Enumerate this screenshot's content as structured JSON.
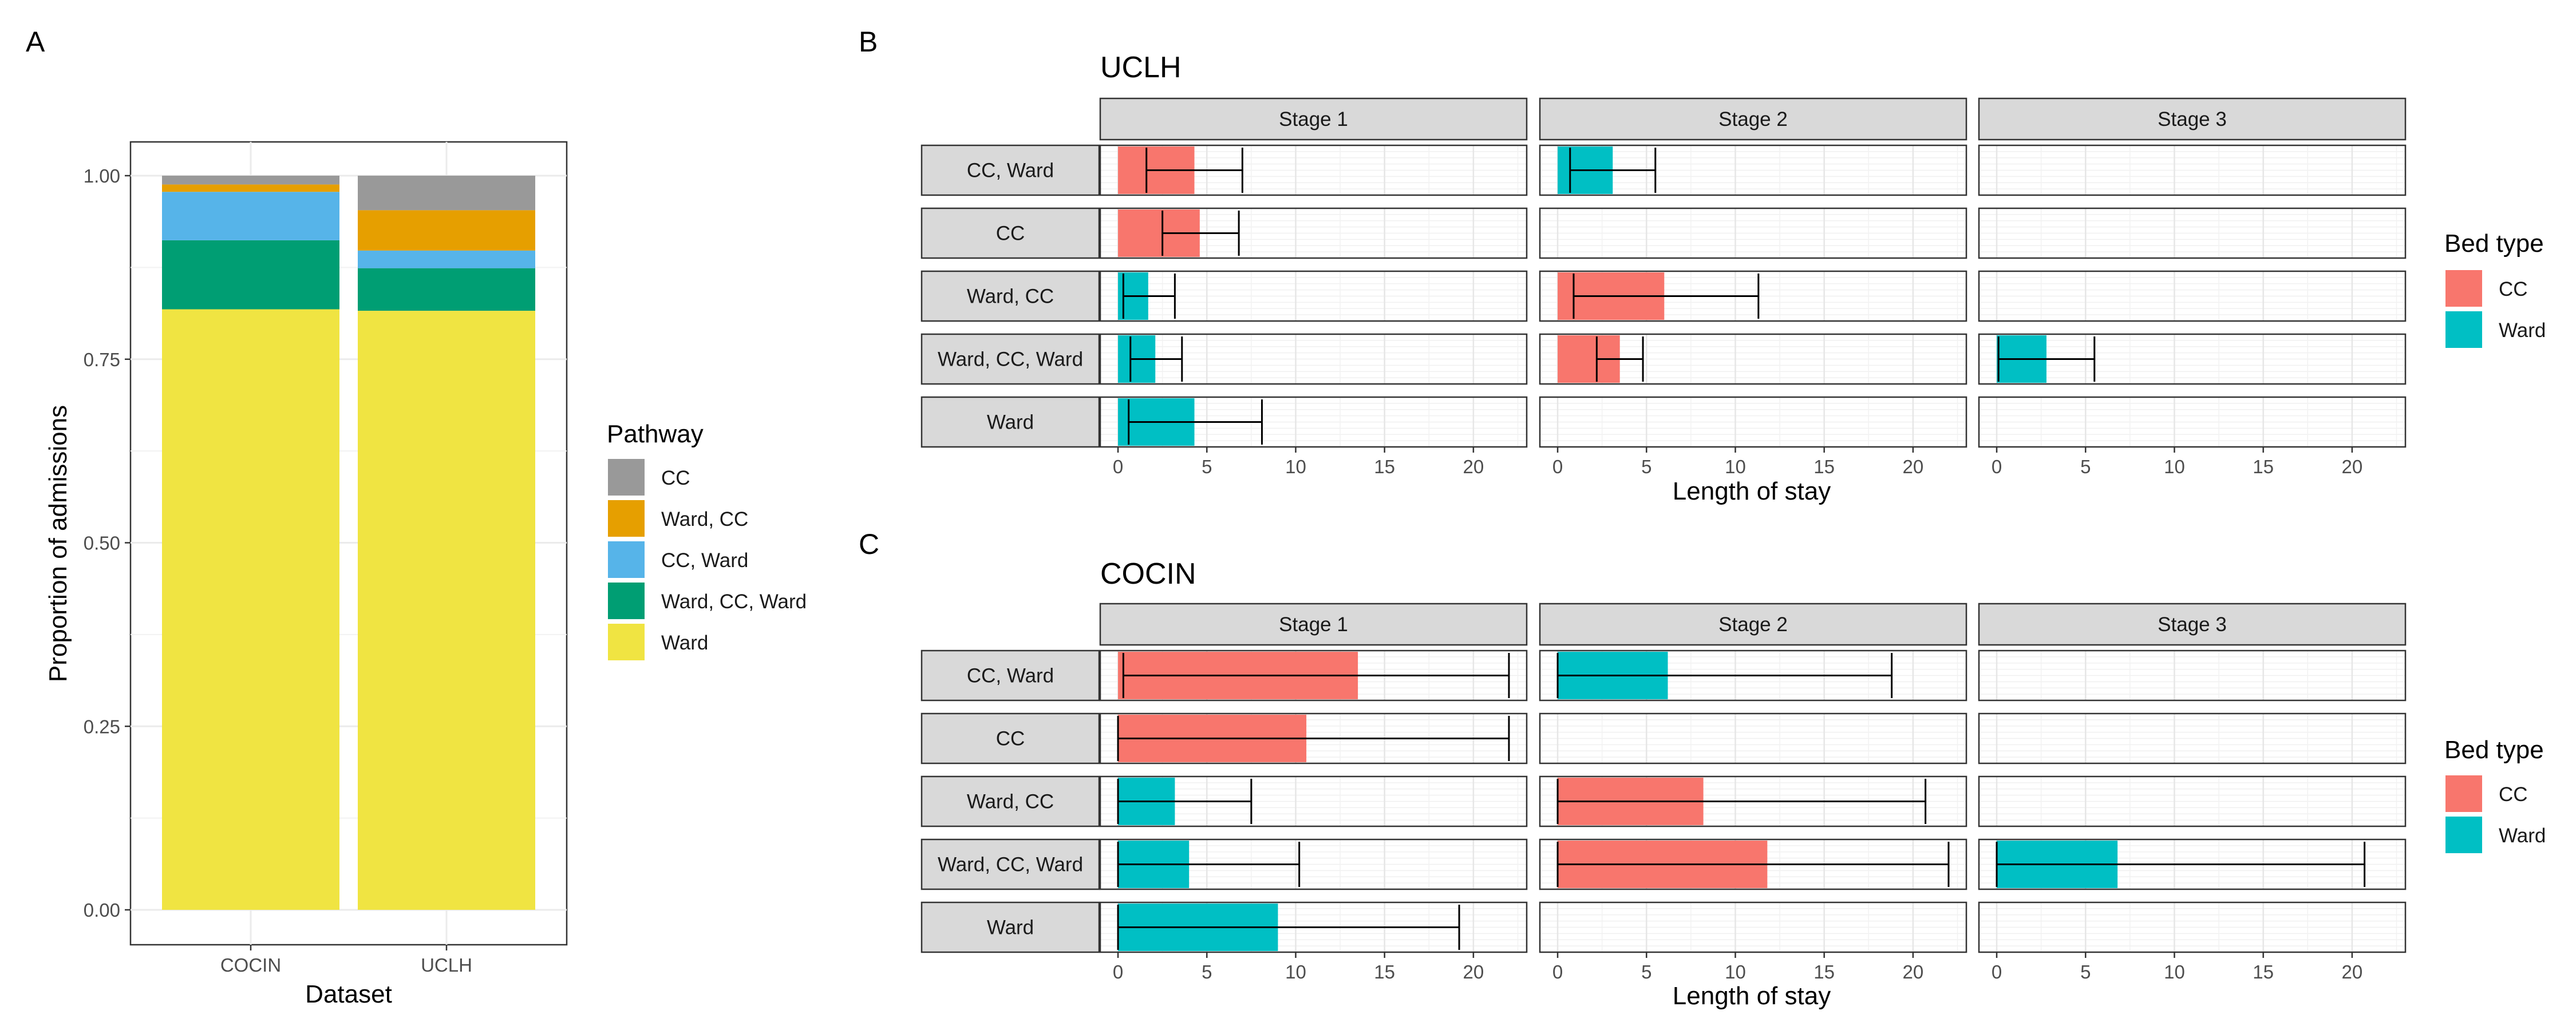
{
  "panel_labels": {
    "a": "A",
    "b": "B",
    "c": "C"
  },
  "colors": {
    "CC": "#999999",
    "Ward, CC": "#E69F00",
    "CC, Ward": "#56B4E9",
    "Ward, CC, Ward": "#009E73",
    "Ward": "#F0E442",
    "bed_CC": "#F8766D",
    "bed_Ward": "#00BFC4"
  },
  "chart_data": [
    {
      "type": "bar",
      "stacked": true,
      "panel": "A",
      "xlabel": "Dataset",
      "ylabel": "Proportion of admissions",
      "categories": [
        "COCIN",
        "UCLH"
      ],
      "ylim": [
        0,
        1
      ],
      "yticks": [
        "0.00",
        "0.25",
        "0.50",
        "0.75",
        "1.00"
      ],
      "legend": {
        "title": "Pathway",
        "position": "right",
        "entries": [
          "CC",
          "Ward, CC",
          "CC, Ward",
          "Ward, CC, Ward",
          "Ward"
        ]
      },
      "series": [
        {
          "name": "Ward",
          "values": [
            0.818,
            0.816
          ]
        },
        {
          "name": "Ward, CC, Ward",
          "values": [
            0.094,
            0.058
          ]
        },
        {
          "name": "CC, Ward",
          "values": [
            0.066,
            0.024
          ]
        },
        {
          "name": "Ward, CC",
          "values": [
            0.01,
            0.055
          ]
        },
        {
          "name": "CC",
          "values": [
            0.012,
            0.047
          ]
        }
      ]
    },
    {
      "type": "bar",
      "orientation": "horizontal",
      "panel": "B",
      "title": "UCLH",
      "xlabel": "Length of stay",
      "xlim": [
        -1,
        23
      ],
      "xticks": [
        0,
        5,
        10,
        15,
        20
      ],
      "stages": [
        "Stage 1",
        "Stage 2",
        "Stage 3"
      ],
      "pathways": [
        "CC, Ward",
        "CC",
        "Ward, CC",
        "Ward, CC, Ward",
        "Ward"
      ],
      "legend": {
        "title": "Bed type",
        "position": "right",
        "entries": [
          "CC",
          "Ward"
        ]
      },
      "bars": [
        {
          "pathway": "CC, Ward",
          "stage": "Stage 1",
          "bed": "CC",
          "value": 4.3,
          "lo": 1.6,
          "hi": 7.0
        },
        {
          "pathway": "CC, Ward",
          "stage": "Stage 2",
          "bed": "Ward",
          "value": 3.1,
          "lo": 0.7,
          "hi": 5.5
        },
        {
          "pathway": "CC",
          "stage": "Stage 1",
          "bed": "CC",
          "value": 4.6,
          "lo": 2.5,
          "hi": 6.8
        },
        {
          "pathway": "Ward, CC",
          "stage": "Stage 1",
          "bed": "Ward",
          "value": 1.7,
          "lo": 0.3,
          "hi": 3.2
        },
        {
          "pathway": "Ward, CC",
          "stage": "Stage 2",
          "bed": "CC",
          "value": 6.0,
          "lo": 0.9,
          "hi": 11.3
        },
        {
          "pathway": "Ward, CC, Ward",
          "stage": "Stage 1",
          "bed": "Ward",
          "value": 2.1,
          "lo": 0.7,
          "hi": 3.6
        },
        {
          "pathway": "Ward, CC, Ward",
          "stage": "Stage 2",
          "bed": "CC",
          "value": 3.5,
          "lo": 2.2,
          "hi": 4.8
        },
        {
          "pathway": "Ward, CC, Ward",
          "stage": "Stage 3",
          "bed": "Ward",
          "value": 2.8,
          "lo": 0.1,
          "hi": 5.5
        },
        {
          "pathway": "Ward",
          "stage": "Stage 1",
          "bed": "Ward",
          "value": 4.3,
          "lo": 0.6,
          "hi": 8.1
        }
      ]
    },
    {
      "type": "bar",
      "orientation": "horizontal",
      "panel": "C",
      "title": "COCIN",
      "xlabel": "Length of stay",
      "xlim": [
        -1,
        23
      ],
      "xticks": [
        0,
        5,
        10,
        15,
        20
      ],
      "stages": [
        "Stage 1",
        "Stage 2",
        "Stage 3"
      ],
      "pathways": [
        "CC, Ward",
        "CC",
        "Ward, CC",
        "Ward, CC, Ward",
        "Ward"
      ],
      "legend": {
        "title": "Bed type",
        "position": "right",
        "entries": [
          "CC",
          "Ward"
        ]
      },
      "bars": [
        {
          "pathway": "CC, Ward",
          "stage": "Stage 1",
          "bed": "CC",
          "value": 13.5,
          "lo": 0.3,
          "hi": 22.0
        },
        {
          "pathway": "CC, Ward",
          "stage": "Stage 2",
          "bed": "Ward",
          "value": 6.2,
          "lo": 0.0,
          "hi": 18.8
        },
        {
          "pathway": "CC",
          "stage": "Stage 1",
          "bed": "CC",
          "value": 10.6,
          "lo": 0.0,
          "hi": 22.0
        },
        {
          "pathway": "Ward, CC",
          "stage": "Stage 1",
          "bed": "Ward",
          "value": 3.2,
          "lo": 0.0,
          "hi": 7.5
        },
        {
          "pathway": "Ward, CC",
          "stage": "Stage 2",
          "bed": "CC",
          "value": 8.2,
          "lo": 0.0,
          "hi": 20.7
        },
        {
          "pathway": "Ward, CC, Ward",
          "stage": "Stage 1",
          "bed": "Ward",
          "value": 4.0,
          "lo": 0.0,
          "hi": 10.2
        },
        {
          "pathway": "Ward, CC, Ward",
          "stage": "Stage 2",
          "bed": "CC",
          "value": 11.8,
          "lo": 0.0,
          "hi": 22.0
        },
        {
          "pathway": "Ward, CC, Ward",
          "stage": "Stage 3",
          "bed": "Ward",
          "value": 6.8,
          "lo": 0.0,
          "hi": 20.7
        },
        {
          "pathway": "Ward",
          "stage": "Stage 1",
          "bed": "Ward",
          "value": 9.0,
          "lo": 0.0,
          "hi": 19.2
        }
      ]
    }
  ]
}
